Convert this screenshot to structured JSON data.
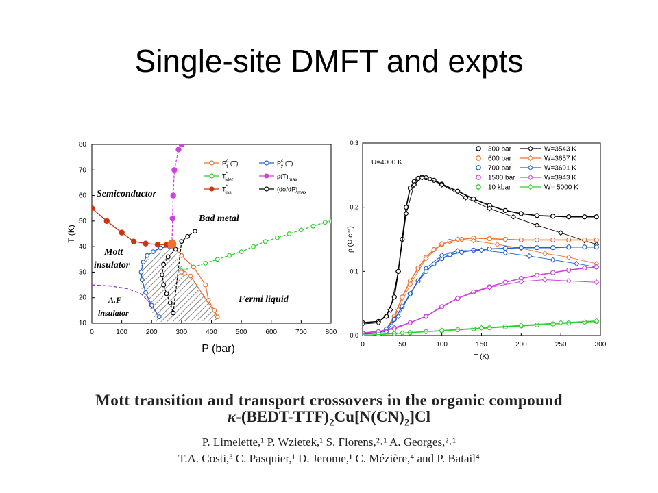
{
  "slide": {
    "title": "Single-site DMFT and expts"
  },
  "caption": {
    "line1": "Mott transition and transport crossovers in the organic compound",
    "line2": {
      "kappa": "κ",
      "pre": "-(BEDT-TTF)",
      "sub1": "2",
      "mid": "Cu[N(CN)",
      "sub2": "2",
      "post": "]Cl"
    },
    "authors1": "P. Limelette,¹ P. Wzietek,¹ S. Florens,²˒¹ A. Georges,²˒¹",
    "authors2": "T.A. Costi,³ C. Pasquier,¹ D. Jerome,¹ C. Mézière,⁴ and P. Batail⁴"
  },
  "chart_data": [
    {
      "type": "line",
      "xlabel": "P (bar)",
      "ylabel": "T (K)",
      "xlim": [
        0,
        800
      ],
      "ylim": [
        10,
        80
      ],
      "xticks": [
        "0",
        "100",
        "200",
        "300",
        "400",
        "500",
        "600",
        "700",
        "800"
      ],
      "yticks": [
        "10",
        "20",
        "30",
        "40",
        "50",
        "60",
        "70",
        "80"
      ],
      "legend_position": "top-right",
      "legend": [
        {
          "label": "P",
          "sup": "c",
          "sub": "1",
          "tail": " (T)",
          "color": "#f07030",
          "marker": "open-circle"
        },
        {
          "label": "P",
          "sup": "c",
          "sub": "2",
          "tail": " (T)",
          "color": "#2060d0",
          "marker": "open-circle"
        },
        {
          "label": "T",
          "sup": "*",
          "sub": "Met",
          "tail": "",
          "color": "#33cc33",
          "marker": "open-circle"
        },
        {
          "label": "ρ(T)",
          "sup": "",
          "sub": "max",
          "tail": "",
          "color": "#cc44dd",
          "marker": "filled-circle"
        },
        {
          "label": "T",
          "sup": "*",
          "sub": "Ins",
          "tail": "",
          "color": "#cc3311",
          "marker": "filled-circle"
        },
        {
          "label": "(dσ/dP)",
          "sup": "",
          "sub": "max",
          "tail": "",
          "color": "#000000",
          "marker": "open-circle"
        }
      ],
      "region_labels": [
        "Semiconductor",
        "Bad metal",
        "Mott",
        "insulator",
        "A.F",
        "insulator",
        "Fermi liquid"
      ],
      "series": [
        {
          "name": "T*Ins",
          "color": "#cc3311",
          "marker": "filled",
          "x": [
            0,
            50,
            100,
            140,
            180,
            220,
            250,
            270
          ],
          "y": [
            55,
            50,
            45.5,
            42,
            41.2,
            40.8,
            40.7,
            41
          ]
        },
        {
          "name": "ρ(T)max",
          "color": "#cc44dd",
          "marker": "filled",
          "x": [
            268,
            270,
            272,
            276,
            290,
            300
          ],
          "y": [
            41,
            51,
            60,
            70,
            78,
            80
          ]
        },
        {
          "name": "T*Met",
          "color": "#33cc33",
          "marker": "open",
          "x": [
            300,
            340,
            380,
            420,
            460,
            500,
            540,
            580,
            620,
            660,
            700,
            740,
            780,
            800
          ],
          "y": [
            30.5,
            32,
            33.5,
            35,
            36.5,
            38,
            40,
            42,
            43.5,
            45,
            46.5,
            48,
            49.5,
            50
          ]
        },
        {
          "name": "Pc1(T)",
          "color": "#f07030",
          "marker": "open",
          "x": [
            275,
            290,
            300,
            340,
            380,
            390,
            410,
            420,
            330,
            310,
            300
          ],
          "y": [
            41,
            38.5,
            36.5,
            32,
            25,
            19,
            15,
            12.5,
            28.5,
            29.5,
            30
          ]
        },
        {
          "name": "Pc2(T)",
          "color": "#2060d0",
          "marker": "open",
          "x": [
            260,
            230,
            205,
            185,
            172,
            165,
            168,
            180,
            200,
            225
          ],
          "y": [
            40,
            39.5,
            38,
            36.5,
            34,
            30,
            27,
            22,
            17,
            12.5
          ]
        },
        {
          "name": "(dσ/dP)max",
          "color": "#000000",
          "marker": "open",
          "x": [
            280,
            255,
            240,
            235,
            240,
            250,
            262,
            272,
            300,
            320,
            345
          ],
          "y": [
            39,
            36,
            33,
            29,
            25,
            21.5,
            18,
            14,
            42,
            44,
            46
          ]
        },
        {
          "name": "AF boundary",
          "color": "#8833cc",
          "marker": "none",
          "x": [
            0,
            60,
            120,
            165,
            190,
            205
          ],
          "y": [
            25,
            24.6,
            23.5,
            21.5,
            18.5,
            15
          ]
        }
      ],
      "critical_point": {
        "x": 268,
        "y": 41,
        "color": "#f07030"
      }
    },
    {
      "type": "line",
      "xlabel": "T (K)",
      "ylabel": "ρ (Ω.cm)",
      "xlim": [
        0,
        300
      ],
      "ylim": [
        0,
        0.3
      ],
      "xticks": [
        "0",
        "50",
        "100",
        "150",
        "200",
        "250",
        "300"
      ],
      "yticks": [
        "0.0",
        "0.1",
        "0.2",
        "0.3"
      ],
      "annotation": "U=4000 K",
      "legend_position": "top-right",
      "legend": [
        {
          "exp": "300 bar",
          "theory": "W=3543 K",
          "color": "#000000"
        },
        {
          "exp": "600 bar",
          "theory": "W=3657 K",
          "color": "#f07030"
        },
        {
          "exp": "700 bar",
          "theory": "W=3691 K",
          "color": "#2060d0"
        },
        {
          "exp": "1500 bar",
          "theory": "W=3943 K",
          "color": "#cc44dd"
        },
        {
          "exp": "10 kbar",
          "theory": "W= 5000 K",
          "color": "#33cc33"
        }
      ],
      "series": [
        {
          "name": "300 bar",
          "color": "#000000",
          "x": [
            0,
            20,
            30,
            40,
            45,
            50,
            55,
            60,
            65,
            70,
            75,
            80,
            90,
            100,
            120,
            140,
            160,
            180,
            200,
            220,
            240,
            260,
            280,
            295
          ],
          "y": [
            0.02,
            0.022,
            0.03,
            0.06,
            0.1,
            0.15,
            0.2,
            0.23,
            0.24,
            0.245,
            0.247,
            0.246,
            0.242,
            0.236,
            0.225,
            0.213,
            0.203,
            0.195,
            0.19,
            0.187,
            0.186,
            0.185,
            0.185,
            0.185
          ]
        },
        {
          "name": "W=3543 K",
          "color": "#000000",
          "x": [
            0,
            20,
            35,
            45,
            55,
            65,
            75,
            85,
            100,
            130,
            160,
            190,
            220,
            250,
            280,
            295
          ],
          "y": [
            0.018,
            0.02,
            0.04,
            0.1,
            0.19,
            0.235,
            0.246,
            0.244,
            0.235,
            0.215,
            0.198,
            0.185,
            0.172,
            0.16,
            0.148,
            0.142
          ]
        },
        {
          "name": "600 bar",
          "color": "#f07030",
          "x": [
            0,
            20,
            30,
            40,
            50,
            60,
            70,
            80,
            90,
            100,
            110,
            125,
            140,
            160,
            180,
            200,
            220,
            240,
            260,
            280,
            295
          ],
          "y": [
            0.003,
            0.004,
            0.01,
            0.03,
            0.06,
            0.085,
            0.105,
            0.122,
            0.134,
            0.142,
            0.147,
            0.15,
            0.152,
            0.151,
            0.15,
            0.149,
            0.149,
            0.149,
            0.149,
            0.149,
            0.149
          ]
        },
        {
          "name": "W=3657 K",
          "color": "#f07030",
          "x": [
            0,
            30,
            45,
            60,
            80,
            100,
            120,
            140,
            170,
            200,
            230,
            260,
            295
          ],
          "y": [
            0.003,
            0.008,
            0.04,
            0.08,
            0.12,
            0.143,
            0.15,
            0.148,
            0.142,
            0.136,
            0.128,
            0.122,
            0.112
          ]
        },
        {
          "name": "700 bar",
          "color": "#2060d0",
          "x": [
            0,
            20,
            30,
            40,
            50,
            60,
            70,
            80,
            90,
            100,
            110,
            125,
            140,
            160,
            180,
            200,
            220,
            240,
            260,
            280,
            295
          ],
          "y": [
            0.002,
            0.004,
            0.01,
            0.025,
            0.045,
            0.065,
            0.085,
            0.1,
            0.112,
            0.12,
            0.126,
            0.13,
            0.133,
            0.135,
            0.136,
            0.137,
            0.137,
            0.137,
            0.138,
            0.138,
            0.138
          ]
        },
        {
          "name": "W=3691 K",
          "color": "#2060d0",
          "x": [
            0,
            30,
            45,
            60,
            80,
            100,
            120,
            150,
            180,
            210,
            240,
            270,
            295
          ],
          "y": [
            0.002,
            0.006,
            0.03,
            0.065,
            0.105,
            0.125,
            0.132,
            0.133,
            0.129,
            0.124,
            0.118,
            0.112,
            0.107
          ]
        },
        {
          "name": "1500 bar",
          "color": "#cc44dd",
          "x": [
            0,
            20,
            40,
            60,
            80,
            100,
            120,
            140,
            160,
            180,
            200,
            220,
            240,
            260,
            280,
            295
          ],
          "y": [
            0.004,
            0.006,
            0.012,
            0.02,
            0.03,
            0.045,
            0.058,
            0.068,
            0.076,
            0.083,
            0.089,
            0.094,
            0.098,
            0.102,
            0.105,
            0.107
          ]
        },
        {
          "name": "W=3943 K",
          "color": "#cc44dd",
          "x": [
            0,
            40,
            80,
            120,
            160,
            200,
            230,
            260,
            295
          ],
          "y": [
            0.004,
            0.01,
            0.03,
            0.058,
            0.075,
            0.084,
            0.087,
            0.085,
            0.083
          ]
        },
        {
          "name": "10 kbar",
          "color": "#33cc33",
          "x": [
            0,
            20,
            40,
            60,
            80,
            100,
            120,
            140,
            160,
            180,
            200,
            220,
            240,
            260,
            280,
            295
          ],
          "y": [
            0.0,
            0.0015,
            0.003,
            0.0045,
            0.006,
            0.0075,
            0.009,
            0.0105,
            0.012,
            0.0135,
            0.015,
            0.0165,
            0.018,
            0.0195,
            0.021,
            0.022
          ]
        },
        {
          "name": "W= 5000 K",
          "color": "#33cc33",
          "x": [
            0,
            50,
            100,
            150,
            200,
            250,
            295
          ],
          "y": [
            0.0,
            0.004,
            0.008,
            0.012,
            0.016,
            0.02,
            0.023
          ]
        }
      ]
    }
  ]
}
